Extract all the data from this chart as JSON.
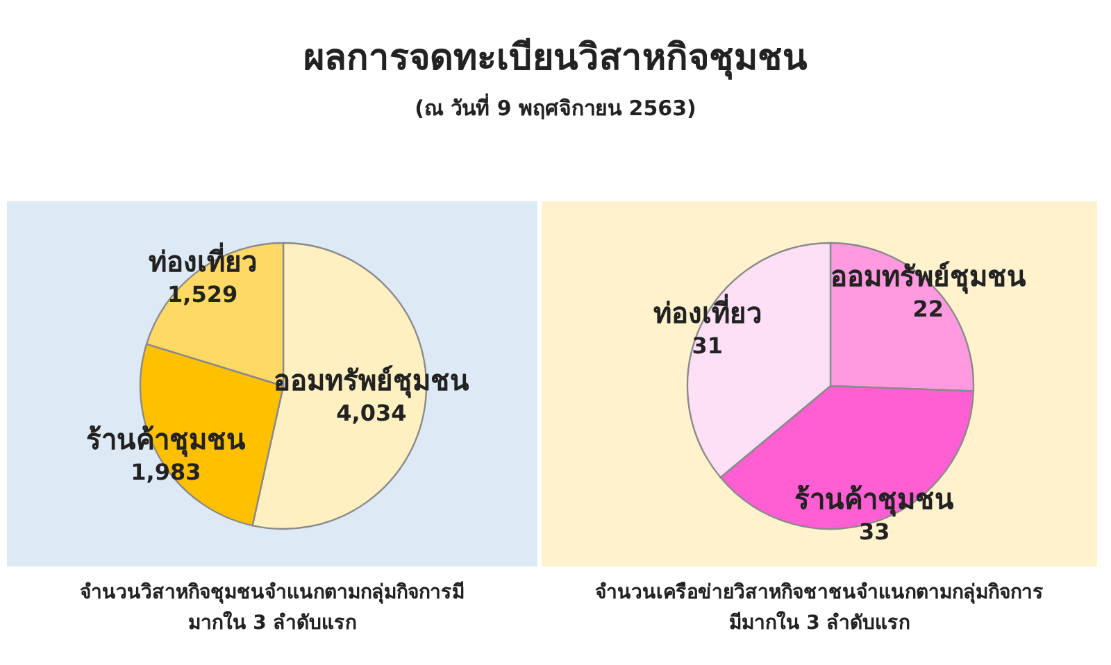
{
  "chart_data": [
    {
      "type": "pie",
      "title": "ผลการจดทะเบียนวิสาหกิจชุมชน",
      "subtitle": "(ณ วันที่ 9 พฤศจิกายน 2563)",
      "categories": [
        "ออมทรัพย์ชุมชน",
        "ร้านค้าชุมชน",
        "ท่องเที่ยว"
      ],
      "values": [
        4034,
        1983,
        1529
      ],
      "colors": [
        "#fff0c2",
        "#ffc000",
        "#ffd966"
      ],
      "value_labels": [
        "4,034",
        "1,983",
        "1,529"
      ],
      "annotations": [
        "จำนวนวิสาหกิจชุมชนจำแนกตามกลุ่มกิจการมีมากใน 3 ลำดับแรก"
      ]
    },
    {
      "type": "pie",
      "categories": [
        "ออมทรัพย์ชุมชน",
        "ร้านค้าชุมชน",
        "ท่องเที่ยว"
      ],
      "values": [
        22,
        33,
        31
      ],
      "colors": [
        "#ff99e0",
        "#ff5fd2",
        "#fde0f6"
      ],
      "data_labels": true,
      "annotations": [
        "จำนวนเครือข่ายวิสาหกิจชาชนจำแนกตามกลุ่มกิจการมีมากใน 3 ลำดับแรก"
      ]
    }
  ]
}
